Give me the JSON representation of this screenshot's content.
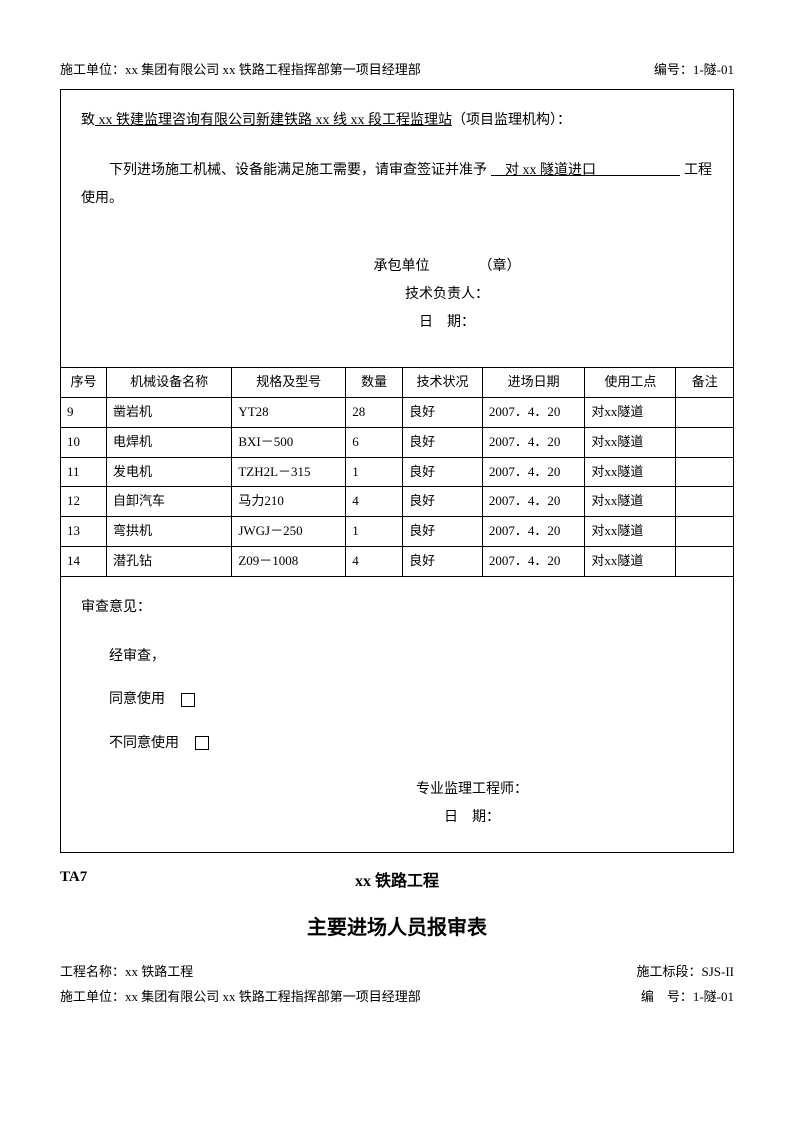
{
  "header": {
    "construction_unit_label": "施工单位：",
    "construction_unit": "xx 集团有限公司 xx 铁路工程指挥部第一项目经理部",
    "code_label": "编号：",
    "code": "1-隧-01"
  },
  "letter": {
    "addressee_prefix": "致",
    "addressee": " xx 铁建监理咨询有限公司新建铁路 xx 线 xx 段工程监理站",
    "addressee_suffix": "（项目监理机构）：",
    "body_before": "下列进场施工机械、设备能满足施工需要，请审查签证并准予",
    "body_fill": "　对 xx 隧道进口　　　　　　",
    "body_after": "工程使用。",
    "contractor": "承包单位　　　　（章）",
    "tech_leader": "技术负责人：",
    "date": "日　期："
  },
  "table": {
    "headers": [
      "序号",
      "机械设备名称",
      "规格及型号",
      "数量",
      "技术状况",
      "进场日期",
      "使用工点",
      "备注"
    ],
    "rows": [
      [
        "9",
        "凿岩机",
        "YT28",
        "28",
        "良好",
        "2007．4．20",
        "对xx隧道",
        ""
      ],
      [
        "10",
        "电焊机",
        "BXI－500",
        "6",
        "良好",
        "2007．4．20",
        "对xx隧道",
        ""
      ],
      [
        "11",
        "发电机",
        "TZH2L－315",
        "1",
        "良好",
        "2007．4．20",
        "对xx隧道",
        ""
      ],
      [
        "12",
        "自卸汽车",
        "马力210",
        "4",
        "良好",
        "2007．4．20",
        "对xx隧道",
        ""
      ],
      [
        "13",
        "弯拱机",
        "JWGJ－250",
        "1",
        "良好",
        "2007．4．20",
        "对xx隧道",
        ""
      ],
      [
        "14",
        "潜孔钻",
        "Z09－1008",
        "4",
        "良好",
        "2007．4．20",
        "对xx隧道",
        ""
      ]
    ]
  },
  "review": {
    "label": "审查意见：",
    "after_review": "经审查，",
    "agree": "同意使用",
    "disagree": "不同意使用",
    "engineer": "专业监理工程师：",
    "date": "日　期："
  },
  "next_form": {
    "code": "TA7",
    "railway": "xx 铁路工程",
    "title": "主要进场人员报审表",
    "project_label": "工程名称：",
    "project": "xx 铁路工程",
    "section_label": "施工标段：",
    "section": "SJS-II",
    "unit_label": "施工单位：",
    "unit": "xx 集团有限公司 xx 铁路工程指挥部第一项目经理部",
    "code_label": "编　号：",
    "code_val": "1-隧-01"
  }
}
